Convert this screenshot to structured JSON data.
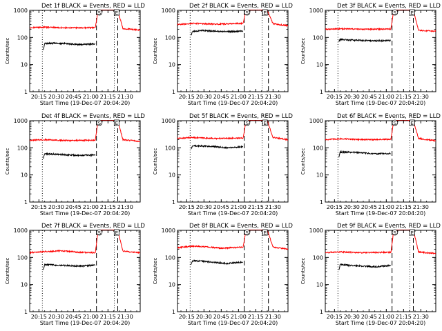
{
  "chart_data": {
    "type": "line",
    "layout": {
      "rows": 3,
      "cols": 3
    },
    "colors": {
      "events": "#000000",
      "lld": "#ff0000",
      "axis": "#000000",
      "background": "#ffffff"
    },
    "panels": [
      {
        "title": "Det 1f BLACK = Events, RED = LLD",
        "xlabel": "Start Time (19-Dec-07 20:04:20)",
        "ylabel": "Counts/sec",
        "y_ticks": [
          "1",
          "10",
          "100",
          "1000"
        ],
        "x_ticks": [
          "20:15",
          "20:30",
          "20:45",
          "21:00",
          "21:15",
          "21:30"
        ],
        "x_tick_values": [
          15,
          30,
          45,
          60,
          75,
          90
        ],
        "xlim": [
          7,
          103
        ],
        "ylim": [
          1,
          1000
        ],
        "y_scale": "log",
        "x_unit_note": "minutes after 20:00",
        "vlines": {
          "dotted": [
            18,
            80.5
          ],
          "dashed": [
            65,
            83.5
          ]
        },
        "markers": [
          {
            "label": "S",
            "x": 67.5
          },
          {
            "label": "E",
            "x": 82.5
          }
        ],
        "lld": {
          "x": [
            7,
            20,
            40,
            64,
            66.5,
            70,
            78,
            83.5,
            88,
            103
          ],
          "y": [
            230,
            240,
            225,
            230,
            1000,
            1100,
            1100,
            1000,
            210,
            190
          ]
        },
        "events": {
          "x": [
            18.8,
            20,
            30,
            40,
            50,
            64
          ],
          "y": [
            35,
            60,
            62,
            58,
            55,
            58
          ]
        }
      },
      {
        "title": "Det 2f BLACK = Events, RED = LLD",
        "xlabel": "Start Time (19-Dec-07 20:04:20)",
        "ylabel": "Counts/sec",
        "y_ticks": [
          "1",
          "10",
          "100",
          "1000"
        ],
        "x_ticks": [
          "20:15",
          "20:30",
          "20:45",
          "21:00",
          "21:15",
          "21:30"
        ],
        "x_tick_values": [
          15,
          30,
          45,
          60,
          75,
          90
        ],
        "xlim": [
          7,
          103
        ],
        "ylim": [
          1,
          1000
        ],
        "y_scale": "log",
        "x_unit_note": "minutes after 20:00",
        "vlines": {
          "dotted": [
            18,
            80.5
          ],
          "dashed": [
            65,
            86
          ]
        },
        "markers": [
          {
            "label": "S",
            "x": 67.5
          },
          {
            "label": "E",
            "x": 83
          }
        ],
        "lld": {
          "x": [
            7,
            20,
            40,
            64,
            66.5,
            70,
            78,
            85,
            90,
            103
          ],
          "y": [
            300,
            330,
            310,
            330,
            1000,
            1100,
            1100,
            1000,
            320,
            270
          ]
        },
        "events": {
          "x": [
            18.8,
            20,
            30,
            40,
            50,
            64
          ],
          "y": [
            120,
            170,
            180,
            170,
            165,
            170
          ]
        }
      },
      {
        "title": "Det 3f BLACK = Events, RED = LLD",
        "xlabel": "Start Time (19-Dec-07 20:04:20)",
        "ylabel": "Counts/sec",
        "y_ticks": [
          "1",
          "10",
          "100",
          "1000"
        ],
        "x_ticks": [
          "20:15",
          "20:30",
          "20:45",
          "21:00",
          "21:15",
          "21:30"
        ],
        "x_tick_values": [
          15,
          30,
          45,
          60,
          75,
          90
        ],
        "xlim": [
          7,
          103
        ],
        "ylim": [
          1,
          1000
        ],
        "y_scale": "log",
        "x_unit_note": "minutes after 20:00",
        "vlines": {
          "dotted": [
            18,
            80.5
          ],
          "dashed": [
            65,
            83.5
          ]
        },
        "markers": [
          {
            "label": "S",
            "x": 67.5
          },
          {
            "label": "E",
            "x": 82.5
          }
        ],
        "lld": {
          "x": [
            7,
            20,
            40,
            64,
            66.5,
            70,
            78,
            83.5,
            88,
            103
          ],
          "y": [
            200,
            210,
            200,
            205,
            1000,
            1100,
            1100,
            1000,
            180,
            170
          ]
        },
        "events": {
          "x": [
            18.8,
            20,
            30,
            40,
            50,
            64
          ],
          "y": [
            70,
            85,
            80,
            78,
            75,
            78
          ]
        }
      },
      {
        "title": "Det 4f BLACK = Events, RED = LLD",
        "xlabel": "Start Time (19-Dec-07 20:04:20)",
        "ylabel": "Counts/sec",
        "y_ticks": [
          "1",
          "10",
          "100",
          "1000"
        ],
        "x_ticks": [
          "20:15",
          "20:30",
          "20:45",
          "21:00",
          "21:15",
          "21:30"
        ],
        "x_tick_values": [
          15,
          30,
          45,
          60,
          75,
          90
        ],
        "xlim": [
          7,
          103
        ],
        "ylim": [
          1,
          1000
        ],
        "y_scale": "log",
        "x_unit_note": "minutes after 20:00",
        "vlines": {
          "dotted": [
            18,
            80.5
          ],
          "dashed": [
            65,
            83.5
          ]
        },
        "markers": [
          {
            "label": "S",
            "x": 67.5
          },
          {
            "label": "E",
            "x": 82.5
          }
        ],
        "lld": {
          "x": [
            7,
            20,
            40,
            64,
            66.5,
            70,
            78,
            83.5,
            88,
            103
          ],
          "y": [
            190,
            200,
            185,
            190,
            1000,
            1100,
            1100,
            1000,
            200,
            170
          ]
        },
        "events": {
          "x": [
            18.8,
            20,
            30,
            40,
            50,
            64
          ],
          "y": [
            40,
            60,
            58,
            55,
            52,
            55
          ]
        }
      },
      {
        "title": "Det 5f BLACK = Events, RED = LLD",
        "xlabel": "Start Time (19-Dec-07 20:04:20)",
        "ylabel": "Counts/sec",
        "y_ticks": [
          "1",
          "10",
          "100",
          "1000"
        ],
        "x_ticks": [
          "20:15",
          "20:30",
          "20:45",
          "21:00",
          "21:15",
          "21:30"
        ],
        "x_tick_values": [
          15,
          30,
          45,
          60,
          75,
          90
        ],
        "xlim": [
          7,
          103
        ],
        "ylim": [
          1,
          1000
        ],
        "y_scale": "log",
        "x_unit_note": "minutes after 20:00",
        "vlines": {
          "dotted": [
            18,
            80.5
          ],
          "dashed": [
            65,
            86
          ]
        },
        "markers": [
          {
            "label": "S",
            "x": 67.5
          },
          {
            "label": "E",
            "x": 83
          }
        ],
        "lld": {
          "x": [
            7,
            20,
            40,
            64,
            66.5,
            70,
            78,
            85,
            90,
            103
          ],
          "y": [
            220,
            240,
            220,
            230,
            1000,
            1100,
            1100,
            1000,
            240,
            200
          ]
        },
        "events": {
          "x": [
            18.8,
            20,
            30,
            40,
            50,
            64
          ],
          "y": [
            90,
            120,
            115,
            110,
            100,
            108
          ]
        }
      },
      {
        "title": "Det 6f BLACK = Events, RED = LLD",
        "xlabel": "Start Time (19-Dec-07 20:04:20)",
        "ylabel": "Counts/sec",
        "y_ticks": [
          "1",
          "10",
          "100",
          "1000"
        ],
        "x_ticks": [
          "20:15",
          "20:30",
          "20:45",
          "21:00",
          "21:15",
          "21:30"
        ],
        "x_tick_values": [
          15,
          30,
          45,
          60,
          75,
          90
        ],
        "xlim": [
          7,
          103
        ],
        "ylim": [
          1,
          1000
        ],
        "y_scale": "log",
        "x_unit_note": "minutes after 20:00",
        "vlines": {
          "dotted": [
            18,
            80.5
          ],
          "dashed": [
            65,
            83.5
          ]
        },
        "markers": [
          {
            "label": "S",
            "x": 67.5
          },
          {
            "label": "E",
            "x": 82.5
          }
        ],
        "lld": {
          "x": [
            7,
            20,
            40,
            64,
            66.5,
            70,
            78,
            83.5,
            88,
            103
          ],
          "y": [
            200,
            215,
            200,
            205,
            1000,
            1100,
            1100,
            1000,
            220,
            180
          ]
        },
        "events": {
          "x": [
            18.8,
            20,
            30,
            40,
            50,
            64
          ],
          "y": [
            45,
            70,
            68,
            65,
            60,
            62
          ]
        }
      },
      {
        "title": "Det 7f BLACK = Events, RED = LLD",
        "xlabel": "Start Time (19-Dec-07 20:04:20)",
        "ylabel": "Counts/sec",
        "y_ticks": [
          "1",
          "10",
          "100",
          "1000"
        ],
        "x_ticks": [
          "20:15",
          "20:30",
          "20:45",
          "21:00",
          "21:15",
          "21:30"
        ],
        "x_tick_values": [
          15,
          30,
          45,
          60,
          75,
          90
        ],
        "xlim": [
          7,
          103
        ],
        "ylim": [
          1,
          1000
        ],
        "y_scale": "log",
        "x_unit_note": "minutes after 20:00",
        "vlines": {
          "dotted": [
            18,
            80.5
          ],
          "dashed": [
            65,
            83.5
          ]
        },
        "markers": [
          {
            "label": "S",
            "x": 67.5
          },
          {
            "label": "E",
            "x": 82.5
          }
        ],
        "lld": {
          "x": [
            7,
            20,
            35,
            50,
            64,
            66.5,
            70,
            78,
            83.5,
            88,
            103
          ],
          "y": [
            150,
            165,
            175,
            155,
            150,
            1000,
            1100,
            1100,
            1000,
            170,
            150
          ]
        },
        "events": {
          "x": [
            18.8,
            20,
            30,
            40,
            50,
            64
          ],
          "y": [
            35,
            55,
            52,
            50,
            48,
            52
          ]
        }
      },
      {
        "title": "Det 8f BLACK = Events, RED = LLD",
        "xlabel": "Start Time (19-Dec-07 20:04:20)",
        "ylabel": "Counts/sec",
        "y_ticks": [
          "1",
          "10",
          "100",
          "1000"
        ],
        "x_ticks": [
          "20:15",
          "20:30",
          "20:45",
          "21:00",
          "21:15",
          "21:30"
        ],
        "x_tick_values": [
          15,
          30,
          45,
          60,
          75,
          90
        ],
        "xlim": [
          7,
          103
        ],
        "ylim": [
          1,
          1000
        ],
        "y_scale": "log",
        "x_unit_note": "minutes after 20:00",
        "vlines": {
          "dotted": [
            18,
            80.5
          ],
          "dashed": [
            65,
            86
          ]
        },
        "markers": [
          {
            "label": "S",
            "x": 67.5
          },
          {
            "label": "E",
            "x": 83
          }
        ],
        "lld": {
          "x": [
            7,
            20,
            30,
            45,
            64,
            66.5,
            70,
            78,
            85,
            90,
            103
          ],
          "y": [
            230,
            260,
            250,
            220,
            240,
            1000,
            1100,
            1100,
            1000,
            240,
            200
          ]
        },
        "events": {
          "x": [
            18.8,
            20,
            30,
            40,
            50,
            64
          ],
          "y": [
            55,
            75,
            72,
            65,
            60,
            68
          ]
        }
      },
      {
        "title": "Det 9f BLACK = Events, RED = LLD",
        "xlabel": "Start Time (19-Dec-07 20:04:20)",
        "ylabel": "Counts/sec",
        "y_ticks": [
          "1",
          "10",
          "100",
          "1000"
        ],
        "x_ticks": [
          "20:15",
          "20:30",
          "20:45",
          "21:00",
          "21:15",
          "21:30"
        ],
        "x_tick_values": [
          15,
          30,
          45,
          60,
          75,
          90
        ],
        "xlim": [
          7,
          103
        ],
        "ylim": [
          1,
          1000
        ],
        "y_scale": "log",
        "x_unit_note": "minutes after 20:00",
        "vlines": {
          "dotted": [
            18,
            80.5
          ],
          "dashed": [
            65,
            83.5
          ]
        },
        "markers": [
          {
            "label": "S",
            "x": 67.5
          },
          {
            "label": "E",
            "x": 82.5
          }
        ],
        "lld": {
          "x": [
            7,
            20,
            40,
            64,
            66.5,
            70,
            78,
            83.5,
            88,
            103
          ],
          "y": [
            150,
            160,
            150,
            155,
            1000,
            1100,
            1100,
            1000,
            160,
            140
          ]
        },
        "events": {
          "x": [
            18.8,
            20,
            30,
            40,
            50,
            64
          ],
          "y": [
            35,
            55,
            50,
            48,
            45,
            50
          ]
        }
      }
    ]
  }
}
